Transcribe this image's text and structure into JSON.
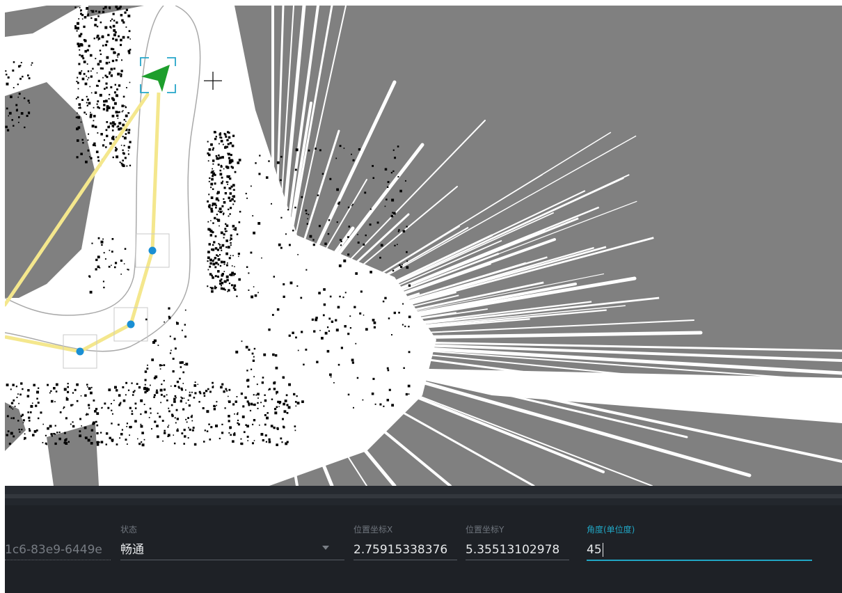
{
  "map": {
    "colors": {
      "unknown": "#808080",
      "free": "#ffffff",
      "obstacle": "#000000",
      "path": "#f4e78d",
      "waypoint": "#1a8fd4",
      "robot": "#1d9e2c",
      "selection": "#26a6c9",
      "boundary": "#a9a9a9"
    },
    "icons": [
      "robot-arrow-icon",
      "crosshair-icon",
      "waypoint-icon"
    ]
  },
  "form": {
    "id_value": "1c6-83e9-6449e",
    "status_label": "状态",
    "status_value": "畅通",
    "x_label": "位置坐标X",
    "x_value": "2.75915338376",
    "y_label": "位置坐标Y",
    "y_value": "5.35513102978",
    "angle_label": "角度(单位度)",
    "angle_value": "45",
    "accent": "#21a6c4"
  }
}
